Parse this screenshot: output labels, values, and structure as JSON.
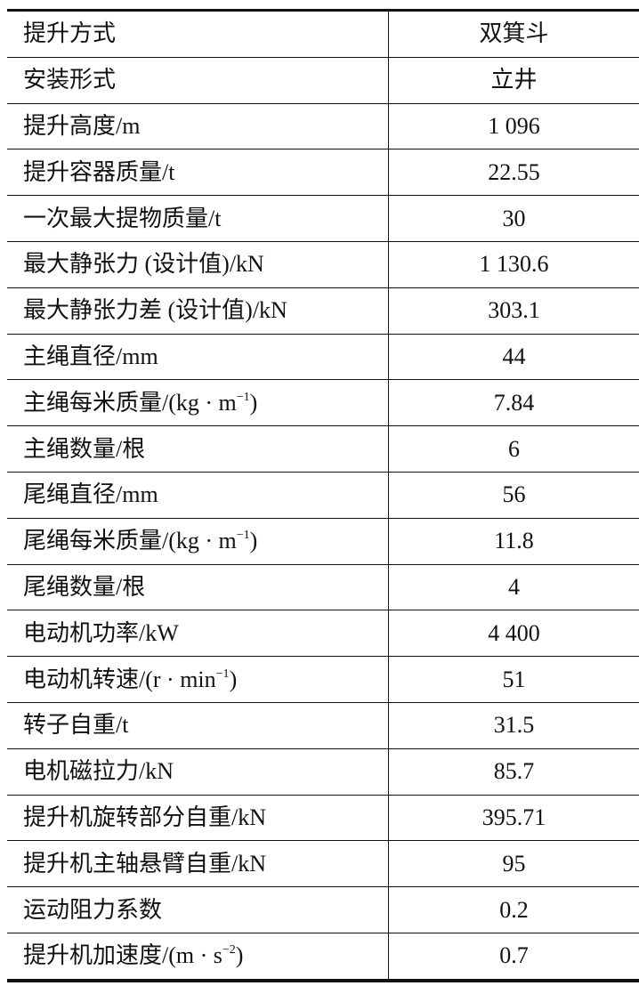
{
  "rows": [
    {
      "label": "提升方式",
      "sup": "",
      "tail": "",
      "value": "双箕斗"
    },
    {
      "label": "安装形式",
      "sup": "",
      "tail": "",
      "value": "立井"
    },
    {
      "label": "提升高度/m",
      "sup": "",
      "tail": "",
      "value": "1 096"
    },
    {
      "label": "提升容器质量/t",
      "sup": "",
      "tail": "",
      "value": "22.55"
    },
    {
      "label": "一次最大提物质量/t",
      "sup": "",
      "tail": "",
      "value": "30"
    },
    {
      "label": "最大静张力 (设计值)/kN",
      "sup": "",
      "tail": "",
      "value": "1 130.6"
    },
    {
      "label": "最大静张力差 (设计值)/kN",
      "sup": "",
      "tail": "",
      "value": "303.1"
    },
    {
      "label": "主绳直径/mm",
      "sup": "",
      "tail": "",
      "value": "44"
    },
    {
      "label": "主绳每米质量/(kg · m",
      "sup": "−1",
      "tail": ")",
      "value": "7.84"
    },
    {
      "label": "主绳数量/根",
      "sup": "",
      "tail": "",
      "value": "6"
    },
    {
      "label": "尾绳直径/mm",
      "sup": "",
      "tail": "",
      "value": "56"
    },
    {
      "label": "尾绳每米质量/(kg · m",
      "sup": "−1",
      "tail": ")",
      "value": "11.8"
    },
    {
      "label": "尾绳数量/根",
      "sup": "",
      "tail": "",
      "value": "4"
    },
    {
      "label": "电动机功率/kW",
      "sup": "",
      "tail": "",
      "value": "4 400"
    },
    {
      "label": "电动机转速/(r · min",
      "sup": "−1",
      "tail": ")",
      "value": "51"
    },
    {
      "label": "转子自重/t",
      "sup": "",
      "tail": "",
      "value": "31.5"
    },
    {
      "label": "电机磁拉力/kN",
      "sup": "",
      "tail": "",
      "value": "85.7"
    },
    {
      "label": "提升机旋转部分自重/kN",
      "sup": "",
      "tail": "",
      "value": "395.71"
    },
    {
      "label": "提升机主轴悬臂自重/kN",
      "sup": "",
      "tail": "",
      "value": "95"
    },
    {
      "label": "运动阻力系数",
      "sup": "",
      "tail": "",
      "value": "0.2"
    },
    {
      "label": "提升机加速度/(m · s",
      "sup": "−2",
      "tail": ")",
      "value": "0.7"
    }
  ]
}
